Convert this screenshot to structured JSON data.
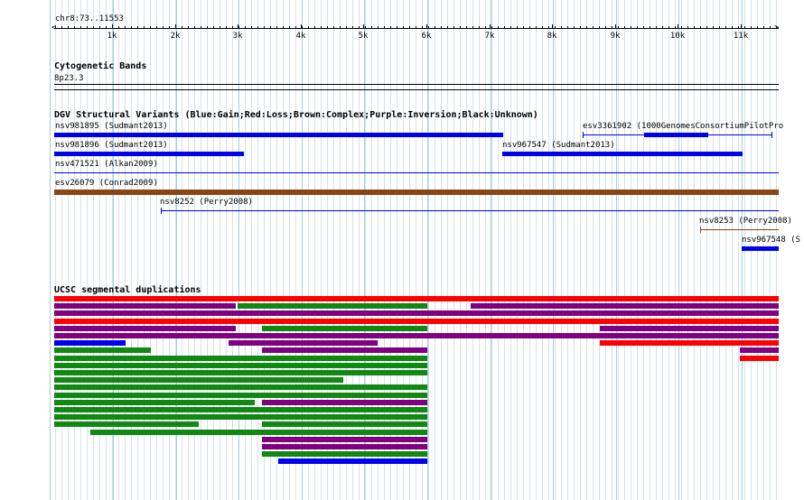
{
  "position_label": "chr8:73..11553",
  "ruler": {
    "ticks": [
      "1k",
      "2k",
      "3k",
      "4k",
      "5k",
      "6k",
      "7k",
      "8k",
      "9k",
      "10k",
      "11k"
    ]
  },
  "cytoband": {
    "title": "Cytogenetic Bands",
    "band": "8p23.3"
  },
  "dgv": {
    "title": "DGV Structural Variants (Blue:Gain;Red:Loss;Brown:Complex;Purple:Inversion;Black:Unknown)",
    "features": [
      {
        "label": "nsv981895 (Sudmant2013)",
        "color": "#0000cc"
      },
      {
        "label": "esv3361902 (1000GenomesConsortiumPilotPro",
        "color": "#0000cc"
      },
      {
        "label": "nsv981896 (Sudmant2013)",
        "color": "#0000cc"
      },
      {
        "label": "nsv967547 (Sudmant2013)",
        "color": "#0000cc"
      },
      {
        "label": "nsv471521 (Alkan2009)",
        "color": "#0000cc"
      },
      {
        "label": "esv26079 (Conrad2009)",
        "color": "#8b4513"
      },
      {
        "label": "nsv8252 (Perry2008)",
        "color": "#0000cc"
      },
      {
        "label": "nsv8253 (Perry2008)",
        "color": "#8b4513"
      },
      {
        "label": "nsv967548 (S",
        "color": "#0000cc"
      }
    ]
  },
  "segdup": {
    "title": "UCSC segmental duplications"
  },
  "colors": {
    "gain": "#0000ee",
    "loss": "#ff0000",
    "complex": "#8b4513",
    "inversion": "#800080",
    "segdup_green": "#118811",
    "grid": "#cfe3ee"
  }
}
